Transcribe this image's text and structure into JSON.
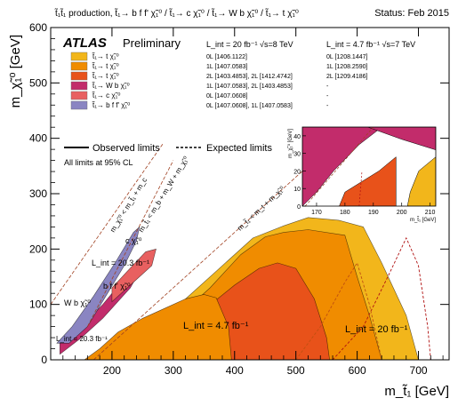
{
  "chart_data": {
    "type": "area",
    "title": "t̃₁t̃₁ production, t̃₁→ b f f' χ̃₁⁰ / t̃₁→ c χ̃₁⁰ / t̃₁→ W b χ̃₁⁰ / t̃₁→ t χ̃₁⁰",
    "status": "Status: Feb 2015",
    "brand": "ATLAS",
    "brand_sub": "Preliminary",
    "xlabel": "m_t̃₁ [GeV]",
    "ylabel": "m_χ̃₁⁰ [GeV]",
    "xlim": [
      100,
      750
    ],
    "ylim": [
      0,
      600
    ],
    "x_ticks": [
      200,
      300,
      400,
      500,
      600,
      700
    ],
    "y_ticks": [
      0,
      100,
      200,
      300,
      400,
      500,
      600
    ],
    "lumi_headers": {
      "col1": "L_int = 20 fb⁻¹  √s=8 TeV",
      "col2": "L_int = 4.7 fb⁻¹  √s=7 TeV"
    },
    "legend_rows": [
      {
        "label": "t̃₁→ t χ̃₁⁰",
        "ref8": "0L [1406.1122]",
        "ref7": "0L [1208.1447]",
        "color": "#f2b61b"
      },
      {
        "label": "t̃₁→ t χ̃₁⁰",
        "ref8": "1L [1407.0583]",
        "ref7": "1L [1208.2590]",
        "color": "#f08c00"
      },
      {
        "label": "t̃₁→ t χ̃₁⁰",
        "ref8": "2L [1403.4853], 2L [1412.4742]",
        "ref7": "2L [1209.4186]",
        "color": "#e8521a"
      },
      {
        "label": "t̃₁→ W b χ̃₁⁰",
        "ref8": "1L [1407.0583], 2L [1403.4853]",
        "ref7": "-",
        "color": "#c22c6b"
      },
      {
        "label": "t̃₁→ c χ̃₁⁰",
        "ref8": "0L [1407.0608]",
        "ref7": "-",
        "color": "#e86060"
      },
      {
        "label": "t̃₁→ b f f' χ̃₁⁰",
        "ref8": "0L [1407.0608], 1L [1407.0583]",
        "ref7": "-",
        "color": "#8a85c2"
      }
    ],
    "line_legend": {
      "observed": "Observed limits",
      "expected": "Expected limits"
    },
    "cl_note": "All limits at 95% CL",
    "annotations": {
      "lumi20": "L_int = 20 fb⁻¹",
      "lumi47": "L_int = 4.7 fb⁻¹",
      "lumi20_bff": "L_int = 20.3 fb⁻¹",
      "lumi20_wb": "L_int = 20.3 fb⁻¹",
      "bff": "b f f' χ̃₁⁰",
      "cchi": "c χ̃₁⁰",
      "wbchi": "W b χ̃₁⁰",
      "kin1": "m_χ̃₁⁰ < m_t̃₁ + m_c",
      "kin2": "m_t̃₁ < m_b + m_W + m_χ̃₁⁰",
      "kin3": "m_t̃₁ < m_t + m_χ̃₁⁰"
    },
    "inset": {
      "xlim": [
        165,
        212
      ],
      "ylim": [
        0,
        45
      ],
      "x_ticks": [
        170,
        180,
        190,
        200,
        210
      ],
      "y_ticks": [
        0,
        10,
        20,
        30,
        40
      ],
      "xlabel": "m_t̃₁ [GeV]",
      "ylabel": "m_χ̃₁⁰ [GeV]"
    },
    "regions": [
      {
        "name": "t-chi 0L observed",
        "color": "#f2b61b",
        "points": [
          [
            195,
            0
          ],
          [
            240,
            40
          ],
          [
            300,
            90
          ],
          [
            370,
            160
          ],
          [
            430,
            220
          ],
          [
            480,
            242
          ],
          [
            520,
            257
          ],
          [
            570,
            252
          ],
          [
            610,
            240
          ],
          [
            640,
            175
          ],
          [
            680,
            80
          ],
          [
            700,
            0
          ]
        ]
      },
      {
        "name": "t-chi 1L observed",
        "color": "#f08c00",
        "points": [
          [
            205,
            0
          ],
          [
            260,
            40
          ],
          [
            310,
            80
          ],
          [
            360,
            130
          ],
          [
            410,
            190
          ],
          [
            450,
            222
          ],
          [
            480,
            230
          ],
          [
            520,
            235
          ],
          [
            580,
            225
          ],
          [
            600,
            150
          ],
          [
            620,
            80
          ],
          [
            640,
            0
          ]
        ]
      },
      {
        "name": "t-chi combined excl",
        "color": "#e8521a",
        "points": [
          [
            220,
            0
          ],
          [
            265,
            20
          ],
          [
            300,
            45
          ],
          [
            350,
            90
          ],
          [
            400,
            135
          ],
          [
            440,
            165
          ],
          [
            470,
            175
          ],
          [
            500,
            165
          ],
          [
            530,
            110
          ],
          [
            550,
            40
          ],
          [
            555,
            0
          ]
        ]
      },
      {
        "name": "t-chi 2L observed",
        "color": "#f08c00",
        "points": [
          [
            155,
            0
          ],
          [
            180,
            20
          ],
          [
            210,
            50
          ],
          [
            250,
            75
          ],
          [
            290,
            95
          ],
          [
            320,
            110
          ],
          [
            350,
            118
          ],
          [
            370,
            112
          ],
          [
            390,
            60
          ],
          [
            395,
            0
          ]
        ]
      },
      {
        "name": "W b chi observed",
        "color": "#c22c6b",
        "points": [
          [
            115,
            10
          ],
          [
            150,
            40
          ],
          [
            185,
            75
          ],
          [
            230,
            130
          ],
          [
            240,
            150
          ],
          [
            238,
            165
          ],
          [
            215,
            140
          ],
          [
            185,
            100
          ],
          [
            150,
            60
          ],
          [
            115,
            30
          ]
        ]
      },
      {
        "name": "c chi observed",
        "color": "#e86060",
        "points": [
          [
            200,
            105
          ],
          [
            230,
            135
          ],
          [
            265,
            170
          ],
          [
            272,
            200
          ],
          [
            255,
            195
          ],
          [
            225,
            160
          ],
          [
            200,
            130
          ]
        ]
      },
      {
        "name": "b f f chi observed",
        "color": "#8a85c2",
        "points": [
          [
            110,
            30
          ],
          [
            135,
            60
          ],
          [
            170,
            115
          ],
          [
            205,
            175
          ],
          [
            235,
            230
          ],
          [
            245,
            240
          ],
          [
            240,
            215
          ],
          [
            220,
            170
          ],
          [
            190,
            115
          ],
          [
            160,
            60
          ],
          [
            130,
            30
          ]
        ]
      }
    ]
  }
}
